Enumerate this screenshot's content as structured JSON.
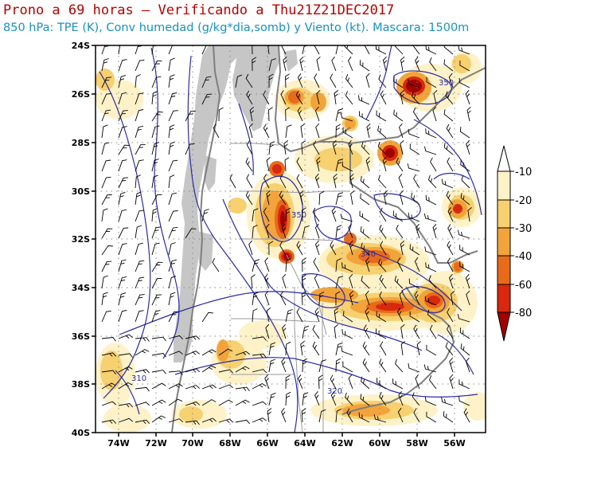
{
  "title_line1": "Prono a 69 horas — Verificando a Thu21Z21DEC2017",
  "title_line2": "850 hPa: TPE (K), Conv humedad (g/kg*dia,somb) y Viento (kt). Mascara: 1500m",
  "lat_labels": [
    "24S",
    "26S",
    "28S",
    "30S",
    "32S",
    "34S",
    "36S",
    "38S",
    "40S"
  ],
  "lon_labels": [
    "74W",
    "72W",
    "70W",
    "68W",
    "66W",
    "64W",
    "62W",
    "60W",
    "58W",
    "56W"
  ],
  "colorbar": {
    "labels": [
      "-10",
      "-20",
      "-30",
      "-40",
      "-60",
      "-80"
    ],
    "colors": [
      "#fff2c8",
      "#f7d070",
      "#f2a43a",
      "#e86a1a",
      "#d8280e",
      "#a00000"
    ]
  },
  "contour_labels": [
    "350",
    "350",
    "340",
    "320",
    "310"
  ],
  "colors": {
    "title_red": "#b80000",
    "title_blue": "#1a8fc0",
    "contour": "#2b2ba8",
    "mask": "#c6c6c6",
    "border": "#7f7f7f"
  }
}
